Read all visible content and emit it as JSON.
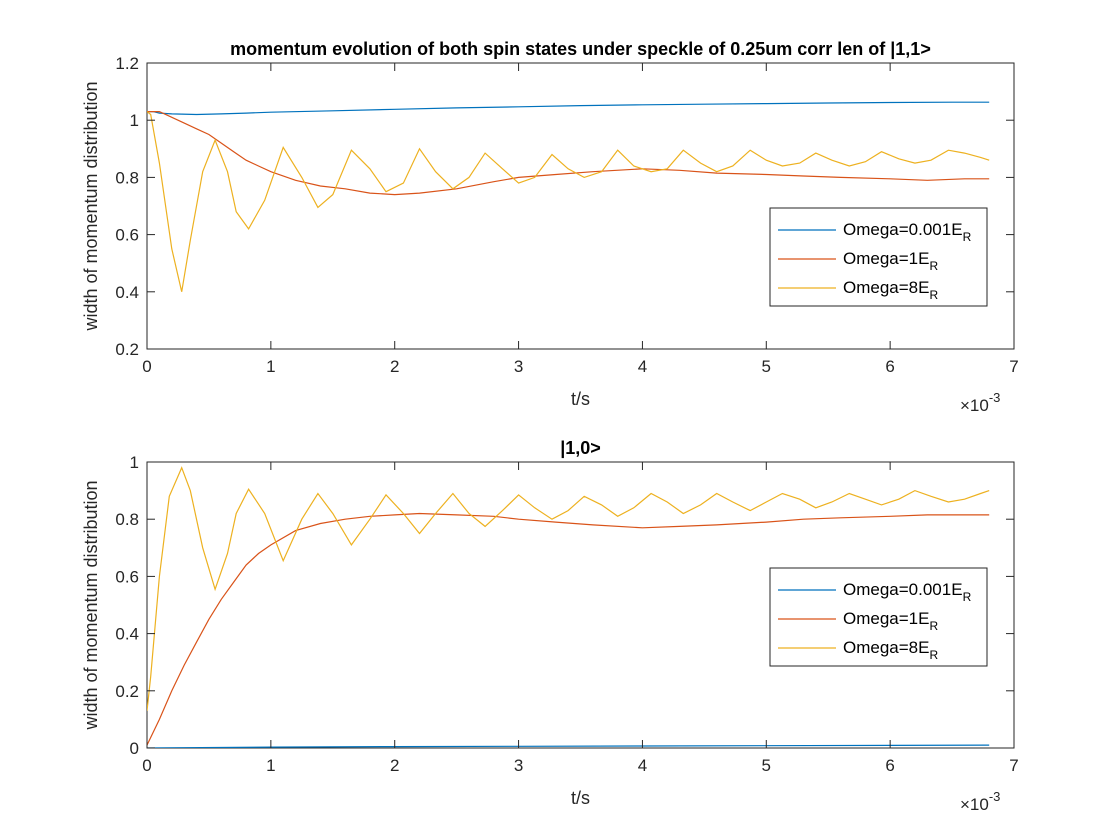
{
  "chart_data": [
    {
      "type": "line",
      "title": "momentum evolution of both spin states under speckle of 0.25um corr len of |1,1>",
      "xlabel": "t/s",
      "ylabel": "width of momentum distribution",
      "x_exponent_label": "×10",
      "x_exponent_power": "-3",
      "xlim": [
        0,
        7
      ],
      "ylim": [
        0.2,
        1.2
      ],
      "xticks": [
        0,
        1,
        2,
        3,
        4,
        5,
        6,
        7
      ],
      "xtick_labels": [
        "0",
        "1",
        "2",
        "3",
        "4",
        "5",
        "6",
        "7"
      ],
      "yticks": [
        0.2,
        0.4,
        0.6,
        0.8,
        1.0,
        1.2
      ],
      "ytick_labels": [
        "0.2",
        "0.4",
        "0.6",
        "0.8",
        "1",
        "1.2"
      ],
      "grid": false,
      "legend_position": "right",
      "series": [
        {
          "name": "Omega=0.001E",
          "name_sub": "R",
          "color": "#0072BD",
          "x": [
            0,
            0.05,
            0.1,
            0.2,
            0.4,
            0.6,
            0.8,
            1.0,
            1.5,
            2.0,
            2.5,
            3.0,
            3.5,
            4.0,
            4.5,
            5.0,
            5.5,
            6.0,
            6.5,
            6.8
          ],
          "y": [
            1.03,
            1.03,
            1.025,
            1.022,
            1.02,
            1.022,
            1.025,
            1.028,
            1.033,
            1.038,
            1.043,
            1.047,
            1.051,
            1.054,
            1.056,
            1.058,
            1.06,
            1.062,
            1.063,
            1.063
          ]
        },
        {
          "name": "Omega=1E",
          "name_sub": "R",
          "color": "#D95319",
          "x": [
            0,
            0.1,
            0.2,
            0.3,
            0.4,
            0.5,
            0.6,
            0.7,
            0.8,
            0.9,
            1.0,
            1.2,
            1.4,
            1.6,
            1.8,
            2.0,
            2.2,
            2.5,
            2.8,
            3.0,
            3.3,
            3.6,
            4.0,
            4.3,
            4.6,
            5.0,
            5.3,
            5.6,
            6.0,
            6.3,
            6.6,
            6.8
          ],
          "y": [
            1.03,
            1.03,
            1.01,
            0.99,
            0.97,
            0.95,
            0.92,
            0.89,
            0.86,
            0.84,
            0.82,
            0.79,
            0.77,
            0.76,
            0.745,
            0.74,
            0.745,
            0.76,
            0.785,
            0.8,
            0.81,
            0.82,
            0.83,
            0.825,
            0.815,
            0.81,
            0.805,
            0.8,
            0.795,
            0.79,
            0.795,
            0.795
          ]
        },
        {
          "name": "Omega=8E",
          "name_sub": "R",
          "color": "#EDB120",
          "x": [
            0,
            0.03,
            0.1,
            0.2,
            0.28,
            0.35,
            0.45,
            0.55,
            0.65,
            0.72,
            0.82,
            0.95,
            1.1,
            1.25,
            1.38,
            1.5,
            1.65,
            1.8,
            1.93,
            2.07,
            2.2,
            2.33,
            2.47,
            2.6,
            2.73,
            2.87,
            3.0,
            3.13,
            3.27,
            3.4,
            3.53,
            3.67,
            3.8,
            3.93,
            4.07,
            4.2,
            4.33,
            4.47,
            4.6,
            4.73,
            4.87,
            5.0,
            5.13,
            5.27,
            5.4,
            5.53,
            5.67,
            5.8,
            5.93,
            6.07,
            6.2,
            6.33,
            6.47,
            6.6,
            6.73,
            6.8
          ],
          "y": [
            1.03,
            1.02,
            0.85,
            0.55,
            0.4,
            0.58,
            0.82,
            0.93,
            0.82,
            0.68,
            0.62,
            0.72,
            0.905,
            0.8,
            0.695,
            0.74,
            0.895,
            0.83,
            0.75,
            0.78,
            0.9,
            0.82,
            0.76,
            0.8,
            0.885,
            0.83,
            0.78,
            0.8,
            0.88,
            0.83,
            0.8,
            0.82,
            0.895,
            0.84,
            0.82,
            0.83,
            0.895,
            0.85,
            0.82,
            0.84,
            0.895,
            0.86,
            0.84,
            0.85,
            0.885,
            0.86,
            0.84,
            0.855,
            0.89,
            0.865,
            0.85,
            0.86,
            0.895,
            0.885,
            0.87,
            0.86
          ]
        }
      ]
    },
    {
      "type": "line",
      "title": "|1,0>",
      "xlabel": "t/s",
      "ylabel": "width of momentum distribution",
      "x_exponent_label": "×10",
      "x_exponent_power": "-3",
      "xlim": [
        0,
        7
      ],
      "ylim": [
        0,
        1
      ],
      "xticks": [
        0,
        1,
        2,
        3,
        4,
        5,
        6,
        7
      ],
      "xtick_labels": [
        "0",
        "1",
        "2",
        "3",
        "4",
        "5",
        "6",
        "7"
      ],
      "yticks": [
        0,
        0.2,
        0.4,
        0.6,
        0.8,
        1.0
      ],
      "ytick_labels": [
        "0",
        "0.2",
        "0.4",
        "0.6",
        "0.8",
        "1"
      ],
      "grid": false,
      "legend_position": "right",
      "series": [
        {
          "name": "Omega=0.001E",
          "name_sub": "R",
          "color": "#0072BD",
          "x": [
            0,
            1,
            2,
            3,
            4,
            5,
            6,
            6.8
          ],
          "y": [
            0.0,
            0.003,
            0.005,
            0.006,
            0.007,
            0.008,
            0.009,
            0.01
          ]
        },
        {
          "name": "Omega=1E",
          "name_sub": "R",
          "color": "#D95319",
          "x": [
            0,
            0.1,
            0.2,
            0.3,
            0.4,
            0.5,
            0.6,
            0.7,
            0.8,
            0.9,
            1.0,
            1.2,
            1.4,
            1.6,
            1.8,
            2.0,
            2.2,
            2.5,
            2.8,
            3.0,
            3.3,
            3.6,
            4.0,
            4.3,
            4.6,
            5.0,
            5.3,
            5.6,
            6.0,
            6.3,
            6.6,
            6.8
          ],
          "y": [
            0.01,
            0.1,
            0.2,
            0.29,
            0.37,
            0.45,
            0.52,
            0.58,
            0.64,
            0.68,
            0.71,
            0.76,
            0.785,
            0.8,
            0.81,
            0.815,
            0.82,
            0.815,
            0.81,
            0.8,
            0.79,
            0.78,
            0.77,
            0.775,
            0.78,
            0.79,
            0.8,
            0.805,
            0.81,
            0.815,
            0.815,
            0.815
          ]
        },
        {
          "name": "Omega=8E",
          "name_sub": "R",
          "color": "#EDB120",
          "x": [
            0,
            0.03,
            0.1,
            0.18,
            0.28,
            0.35,
            0.45,
            0.55,
            0.65,
            0.72,
            0.82,
            0.95,
            1.1,
            1.25,
            1.38,
            1.5,
            1.65,
            1.8,
            1.93,
            2.07,
            2.2,
            2.33,
            2.47,
            2.6,
            2.73,
            2.87,
            3.0,
            3.13,
            3.27,
            3.4,
            3.53,
            3.67,
            3.8,
            3.93,
            4.07,
            4.2,
            4.33,
            4.47,
            4.6,
            4.73,
            4.87,
            5.0,
            5.13,
            5.27,
            5.4,
            5.53,
            5.67,
            5.8,
            5.93,
            6.07,
            6.2,
            6.33,
            6.47,
            6.6,
            6.73,
            6.8
          ],
          "y": [
            0.13,
            0.25,
            0.6,
            0.88,
            0.98,
            0.9,
            0.7,
            0.555,
            0.68,
            0.82,
            0.905,
            0.82,
            0.655,
            0.8,
            0.89,
            0.82,
            0.71,
            0.8,
            0.885,
            0.82,
            0.75,
            0.82,
            0.89,
            0.82,
            0.775,
            0.83,
            0.885,
            0.84,
            0.8,
            0.83,
            0.88,
            0.85,
            0.81,
            0.84,
            0.89,
            0.86,
            0.82,
            0.85,
            0.89,
            0.86,
            0.83,
            0.86,
            0.89,
            0.87,
            0.84,
            0.86,
            0.89,
            0.87,
            0.85,
            0.87,
            0.9,
            0.88,
            0.86,
            0.87,
            0.89,
            0.9
          ]
        }
      ]
    }
  ]
}
